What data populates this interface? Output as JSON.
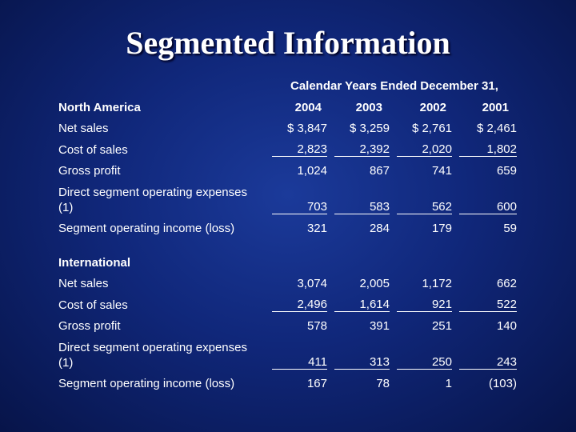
{
  "title": "Segmented Information",
  "period_header": "Calendar Years Ended December 31,",
  "years": [
    "2004",
    "2003",
    "2002",
    "2001"
  ],
  "north_america": {
    "heading": "North America",
    "rows": [
      {
        "label": "Net sales",
        "values": [
          "$ 3,847",
          "$ 3,259",
          "$ 2,761",
          "$ 2,461"
        ]
      },
      {
        "label": "Cost of sales",
        "values": [
          "2,823",
          "2,392",
          "2,020",
          "1,802"
        ]
      },
      {
        "label": "Gross profit",
        "values": [
          "1,024",
          "867",
          "741",
          "659"
        ]
      },
      {
        "label_line1": "Direct segment operating expenses",
        "label_line2": "(1)",
        "values": [
          "703",
          "583",
          "562",
          "600"
        ]
      },
      {
        "label": "Segment operating income (loss)",
        "values": [
          "321",
          "284",
          "179",
          "59"
        ]
      }
    ]
  },
  "international": {
    "heading": "International",
    "rows": [
      {
        "label": "Net sales",
        "values": [
          "3,074",
          "2,005",
          "1,172",
          "662"
        ]
      },
      {
        "label": "Cost of sales",
        "values": [
          "2,496",
          "1,614",
          "921",
          "522"
        ]
      },
      {
        "label": "Gross profit",
        "values": [
          "578",
          "391",
          "251",
          "140"
        ]
      },
      {
        "label_line1": "Direct segment operating expenses",
        "label_line2": "(1)",
        "values": [
          "411",
          "313",
          "250",
          "243"
        ]
      },
      {
        "label": "Segment operating income (loss)",
        "values": [
          "167",
          "78",
          "1",
          "(103)"
        ]
      }
    ]
  }
}
